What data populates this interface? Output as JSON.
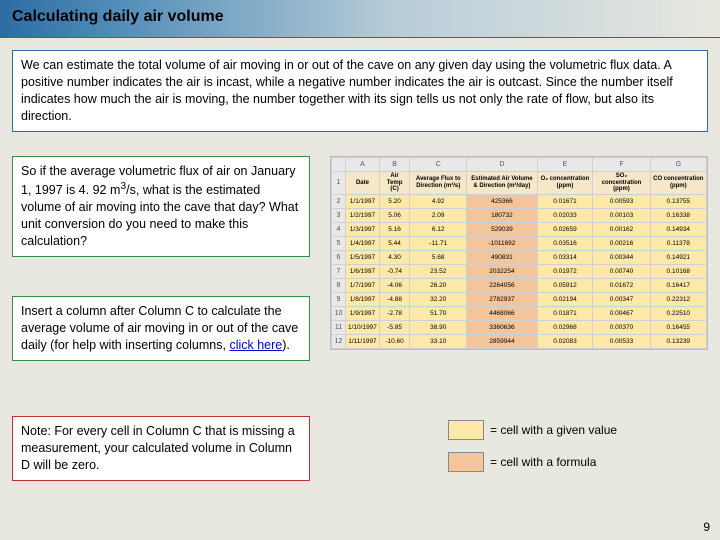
{
  "title": "Calculating daily air volume",
  "box_intro": "We can estimate the total volume of air moving in or out of the cave on any given day using the volumetric flux data.  A positive number indicates the air is incast, while a negative number indicates the air is outcast.  Since the number itself indicates how much the air is moving, the number together with its sign tells us not only the rate of flow, but also its direction.",
  "box_q_a": "So if the average volumetric flux of air on January 1, 1997 is 4. 92 m",
  "box_q_sup": "3",
  "box_q_b": "/s, what is the estimated volume of air moving into the cave that day?  What unit conversion do you need to make this calculation?",
  "box_insert_a": "Insert a column after Column C to calculate the average volume of air moving in or out of the cave daily (for help with inserting columns, ",
  "box_insert_link": "click here",
  "box_insert_b": ").",
  "box_note": "Note: For every cell in Column C that is missing a measurement, your calculated volume in Column D will be zero.",
  "legend_given": "= cell with a given value",
  "legend_formula": "= cell with a formula",
  "page_number": "9",
  "colors": {
    "given_cell": "#ffe9a8",
    "formula_cell": "#f4c49a"
  },
  "spreadsheet": {
    "col_letters": [
      "A",
      "B",
      "C",
      "D",
      "E",
      "F",
      "G"
    ],
    "headers": [
      "Date",
      "Air Temp (C)",
      "Average Flux to Direction (m³/s)",
      "Estimated Air Volume & Direction (m³/day)",
      "O₂ concentration (ppm)",
      "SO₂ concentration (ppm)",
      "CO concentration (ppm)"
    ],
    "rows": [
      {
        "n": "2",
        "cells": [
          "1/1/1997",
          "5.20",
          "4.92",
          "425366",
          "0.01671",
          "0.00593",
          "0.13755"
        ]
      },
      {
        "n": "3",
        "cells": [
          "1/2/1997",
          "5.06",
          "2.09",
          "180732",
          "0.02033",
          "0.00103",
          "0.16338"
        ]
      },
      {
        "n": "4",
        "cells": [
          "1/3/1997",
          "5.16",
          "6.12",
          "529039",
          "0.02659",
          "0.00162",
          "0.14934"
        ]
      },
      {
        "n": "5",
        "cells": [
          "1/4/1997",
          "5.44",
          "-11.71",
          "-1011692",
          "0.03516",
          "0.00216",
          "0.11378"
        ]
      },
      {
        "n": "6",
        "cells": [
          "1/5/1997",
          "4.30",
          "5.68",
          "490831",
          "0.03314",
          "0.00344",
          "0.14921"
        ]
      },
      {
        "n": "7",
        "cells": [
          "1/6/1997",
          "-0.74",
          "23.52",
          "2032254",
          "0.01972",
          "0.00740",
          "0.10168"
        ]
      },
      {
        "n": "8",
        "cells": [
          "1/7/1997",
          "-4.06",
          "26.20",
          "2264056",
          "0.05912",
          "0.01672",
          "0.16417"
        ]
      },
      {
        "n": "9",
        "cells": [
          "1/8/1997",
          "-4.88",
          "32.20",
          "2782937",
          "0.02194",
          "0.00347",
          "0.22312"
        ]
      },
      {
        "n": "10",
        "cells": [
          "1/9/1997",
          "-2.78",
          "51.70",
          "4468066",
          "0.01871",
          "0.00467",
          "0.22510"
        ]
      },
      {
        "n": "11",
        "cells": [
          "1/10/1997",
          "-5.85",
          "38.90",
          "3360636",
          "0.02968",
          "0.00370",
          "0.16455"
        ]
      },
      {
        "n": "12",
        "cells": [
          "1/11/1997",
          "-10.60",
          "33.10",
          "2859944",
          "0.02083",
          "0.00533",
          "0.13239"
        ]
      }
    ]
  }
}
